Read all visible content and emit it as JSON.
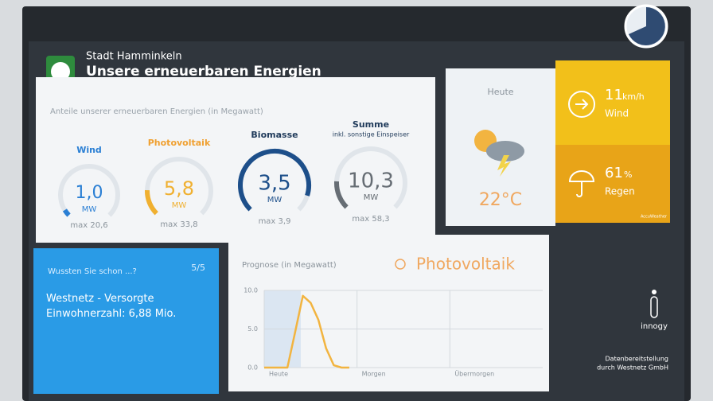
{
  "header": {
    "city": "Stadt Hamminkeln",
    "title": "Unsere erneuerbaren Energien"
  },
  "energy": {
    "caption": "Anteile unserer erneuerbaren Energien (in Megawatt)",
    "sources": [
      {
        "name": "Wind",
        "value": "1,0",
        "unit": "MW",
        "max": "max 20,6"
      },
      {
        "name": "Photovoltaik",
        "value": "5,8",
        "unit": "MW",
        "max": "max 33,8"
      },
      {
        "name": "Biomasse",
        "value": "3,5",
        "unit": "MW",
        "max": "max 3,9"
      },
      {
        "name": "Summe",
        "subtitle": "inkl. sonstige Einspeiser",
        "value": "10,3",
        "unit": "MW",
        "max": "max 58,3"
      }
    ]
  },
  "weather": {
    "day": "Heute",
    "temperature": "22°C",
    "wind_value": "11",
    "wind_unit": "km/h",
    "wind_label": "Wind",
    "rain_value": "61",
    "rain_unit": "%",
    "rain_label": "Regen",
    "provider": "AccuWeather"
  },
  "info": {
    "title": "Wussten Sie schon ...?",
    "page": "5/5",
    "text": "Westnetz - Versorgte Einwohnerzahl: 6,88 Mio."
  },
  "chart_data": {
    "type": "line",
    "title": "Prognose (in Megawatt)",
    "subtitle": "Photovoltaik",
    "categories": [
      "Heute",
      null,
      null,
      null,
      null,
      null,
      null,
      null,
      null,
      null,
      null,
      null,
      "Morgen",
      null,
      null,
      null,
      null,
      null,
      null,
      null,
      null,
      null,
      null,
      null,
      "Übermorgen",
      null,
      null,
      null,
      null,
      null,
      null,
      null,
      null,
      null,
      null,
      null
    ],
    "series": [
      {
        "name": "Photovoltaik",
        "color": "#f2b440",
        "values": [
          0,
          0,
          0,
          0,
          4.6,
          9.3,
          8.4,
          6.2,
          2.5,
          0.3,
          0,
          0,
          null,
          null,
          null,
          null,
          null,
          null,
          null,
          null,
          null,
          null,
          null,
          null,
          null,
          null,
          null,
          null,
          null,
          null,
          null,
          null,
          null,
          null,
          null,
          null
        ]
      }
    ],
    "ylim": [
      0,
      10
    ],
    "yticks": [
      {
        "value": 0,
        "label": "0.0"
      },
      {
        "value": 5,
        "label": "5.0"
      },
      {
        "value": 10,
        "label": "10.0"
      }
    ],
    "grid": true
  },
  "footer": {
    "brand": "innogy",
    "credit_line1": "Datenbereitstellung",
    "credit_line2": "durch Westnetz GmbH"
  }
}
